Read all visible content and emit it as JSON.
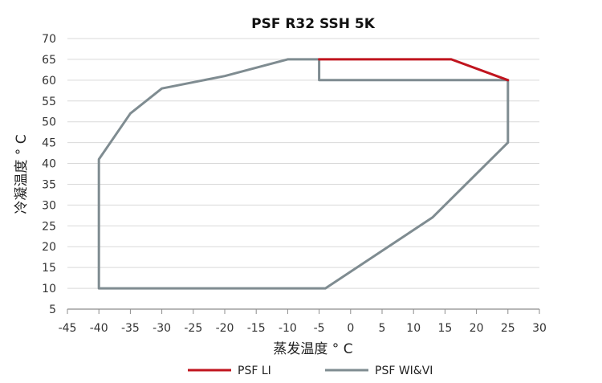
{
  "chart_data": {
    "type": "line",
    "title": "PSF R32 SSH 5K",
    "xlabel": "蒸发温度 ° C",
    "ylabel": "冷凝温度 ° C",
    "xlim": [
      -45,
      30
    ],
    "ylim": [
      5,
      70
    ],
    "xticks": [
      -45,
      -40,
      -35,
      -30,
      -25,
      -20,
      -15,
      -10,
      -5,
      0,
      5,
      10,
      15,
      20,
      25,
      30
    ],
    "yticks": [
      5,
      10,
      15,
      20,
      25,
      30,
      35,
      40,
      45,
      50,
      55,
      60,
      65,
      70
    ],
    "grid": true,
    "legend_position": "bottom",
    "series": [
      {
        "name": "PSF LI",
        "color": "#c0141e",
        "points": [
          [
            -5,
            65
          ],
          [
            16,
            65
          ],
          [
            25,
            60
          ]
        ]
      },
      {
        "name": "PSF  WI&VI",
        "color": "#7f8c91",
        "points": [
          [
            -5,
            65
          ],
          [
            -10,
            65
          ],
          [
            -20,
            61
          ],
          [
            -30,
            58
          ],
          [
            -35,
            52
          ],
          [
            -40,
            41
          ],
          [
            -40,
            10
          ],
          [
            -4,
            10
          ],
          [
            13,
            27
          ],
          [
            25,
            45
          ],
          [
            25,
            60
          ],
          [
            -5,
            60
          ],
          [
            -5,
            65
          ]
        ]
      }
    ]
  }
}
